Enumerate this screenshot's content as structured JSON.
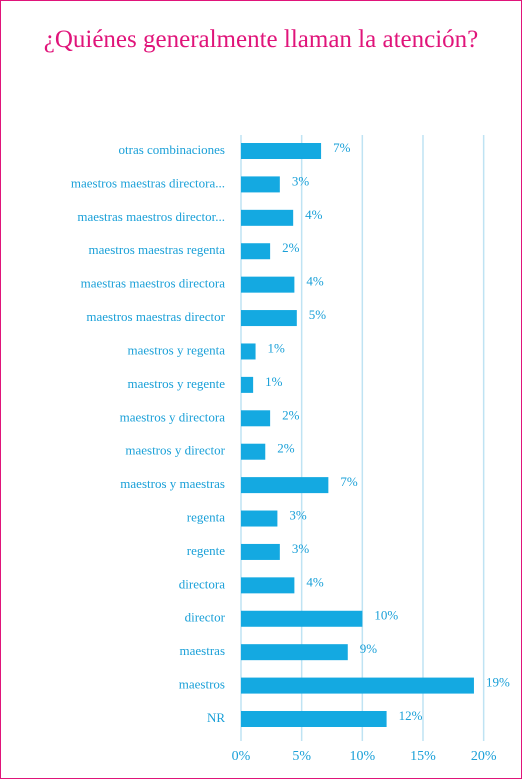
{
  "chart_data": {
    "type": "bar",
    "orientation": "horizontal",
    "title": "¿Quiénes generalmente llaman la atención?",
    "categories": [
      "otras combinaciones",
      "maestros maestras directora...",
      "maestras maestros director...",
      "maestros maestras regenta",
      "maestras maestros directora",
      "maestros maestras director",
      "maestros y regenta",
      "maestros y regente",
      "maestros y directora",
      "maestros y director",
      "maestros y maestras",
      "regenta",
      "regente",
      "directora",
      "director",
      "maestras",
      "maestros",
      "NR"
    ],
    "values": [
      6.6,
      3.2,
      4.3,
      2.4,
      4.4,
      4.6,
      1.2,
      1.0,
      2.4,
      2.0,
      7.2,
      3.0,
      3.2,
      4.4,
      10.0,
      8.8,
      19.2,
      12.0
    ],
    "value_labels": [
      "7%",
      "3%",
      "4%",
      "2%",
      "4%",
      "5%",
      "1%",
      "1%",
      "2%",
      "2%",
      "7%",
      "3%",
      "3%",
      "4%",
      "10%",
      "9%",
      "19%",
      "12%"
    ],
    "color": "#14a9e1",
    "xlim": [
      0,
      21.1
    ],
    "xticks": [
      {
        "value": 0,
        "label": "0%"
      },
      {
        "value": 5,
        "label": "5%"
      },
      {
        "value": 10,
        "label": "10%"
      },
      {
        "value": 15,
        "label": "15%"
      },
      {
        "value": 20,
        "label": "20%"
      }
    ],
    "grid": true
  }
}
